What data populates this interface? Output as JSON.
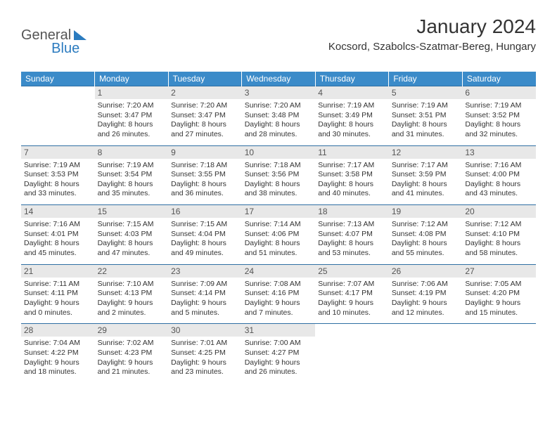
{
  "logo": {
    "part1": "General",
    "part2": "Blue"
  },
  "title": "January 2024",
  "location": "Kocsord, Szabolcs-Szatmar-Bereg, Hungary",
  "daynames": [
    "Sunday",
    "Monday",
    "Tuesday",
    "Wednesday",
    "Thursday",
    "Friday",
    "Saturday"
  ],
  "colors": {
    "header_bg": "#3b8bc9",
    "header_text": "#ffffff",
    "daynum_bg": "#e8e8e8",
    "border": "#2f6fa3",
    "logo_accent": "#2b7bbf"
  },
  "days": [
    {
      "n": "",
      "sr": "",
      "ss": "",
      "dl1": "",
      "dl2": ""
    },
    {
      "n": "1",
      "sr": "Sunrise: 7:20 AM",
      "ss": "Sunset: 3:47 PM",
      "dl1": "Daylight: 8 hours",
      "dl2": "and 26 minutes."
    },
    {
      "n": "2",
      "sr": "Sunrise: 7:20 AM",
      "ss": "Sunset: 3:47 PM",
      "dl1": "Daylight: 8 hours",
      "dl2": "and 27 minutes."
    },
    {
      "n": "3",
      "sr": "Sunrise: 7:20 AM",
      "ss": "Sunset: 3:48 PM",
      "dl1": "Daylight: 8 hours",
      "dl2": "and 28 minutes."
    },
    {
      "n": "4",
      "sr": "Sunrise: 7:19 AM",
      "ss": "Sunset: 3:49 PM",
      "dl1": "Daylight: 8 hours",
      "dl2": "and 30 minutes."
    },
    {
      "n": "5",
      "sr": "Sunrise: 7:19 AM",
      "ss": "Sunset: 3:51 PM",
      "dl1": "Daylight: 8 hours",
      "dl2": "and 31 minutes."
    },
    {
      "n": "6",
      "sr": "Sunrise: 7:19 AM",
      "ss": "Sunset: 3:52 PM",
      "dl1": "Daylight: 8 hours",
      "dl2": "and 32 minutes."
    },
    {
      "n": "7",
      "sr": "Sunrise: 7:19 AM",
      "ss": "Sunset: 3:53 PM",
      "dl1": "Daylight: 8 hours",
      "dl2": "and 33 minutes."
    },
    {
      "n": "8",
      "sr": "Sunrise: 7:19 AM",
      "ss": "Sunset: 3:54 PM",
      "dl1": "Daylight: 8 hours",
      "dl2": "and 35 minutes."
    },
    {
      "n": "9",
      "sr": "Sunrise: 7:18 AM",
      "ss": "Sunset: 3:55 PM",
      "dl1": "Daylight: 8 hours",
      "dl2": "and 36 minutes."
    },
    {
      "n": "10",
      "sr": "Sunrise: 7:18 AM",
      "ss": "Sunset: 3:56 PM",
      "dl1": "Daylight: 8 hours",
      "dl2": "and 38 minutes."
    },
    {
      "n": "11",
      "sr": "Sunrise: 7:17 AM",
      "ss": "Sunset: 3:58 PM",
      "dl1": "Daylight: 8 hours",
      "dl2": "and 40 minutes."
    },
    {
      "n": "12",
      "sr": "Sunrise: 7:17 AM",
      "ss": "Sunset: 3:59 PM",
      "dl1": "Daylight: 8 hours",
      "dl2": "and 41 minutes."
    },
    {
      "n": "13",
      "sr": "Sunrise: 7:16 AM",
      "ss": "Sunset: 4:00 PM",
      "dl1": "Daylight: 8 hours",
      "dl2": "and 43 minutes."
    },
    {
      "n": "14",
      "sr": "Sunrise: 7:16 AM",
      "ss": "Sunset: 4:01 PM",
      "dl1": "Daylight: 8 hours",
      "dl2": "and 45 minutes."
    },
    {
      "n": "15",
      "sr": "Sunrise: 7:15 AM",
      "ss": "Sunset: 4:03 PM",
      "dl1": "Daylight: 8 hours",
      "dl2": "and 47 minutes."
    },
    {
      "n": "16",
      "sr": "Sunrise: 7:15 AM",
      "ss": "Sunset: 4:04 PM",
      "dl1": "Daylight: 8 hours",
      "dl2": "and 49 minutes."
    },
    {
      "n": "17",
      "sr": "Sunrise: 7:14 AM",
      "ss": "Sunset: 4:06 PM",
      "dl1": "Daylight: 8 hours",
      "dl2": "and 51 minutes."
    },
    {
      "n": "18",
      "sr": "Sunrise: 7:13 AM",
      "ss": "Sunset: 4:07 PM",
      "dl1": "Daylight: 8 hours",
      "dl2": "and 53 minutes."
    },
    {
      "n": "19",
      "sr": "Sunrise: 7:12 AM",
      "ss": "Sunset: 4:08 PM",
      "dl1": "Daylight: 8 hours",
      "dl2": "and 55 minutes."
    },
    {
      "n": "20",
      "sr": "Sunrise: 7:12 AM",
      "ss": "Sunset: 4:10 PM",
      "dl1": "Daylight: 8 hours",
      "dl2": "and 58 minutes."
    },
    {
      "n": "21",
      "sr": "Sunrise: 7:11 AM",
      "ss": "Sunset: 4:11 PM",
      "dl1": "Daylight: 9 hours",
      "dl2": "and 0 minutes."
    },
    {
      "n": "22",
      "sr": "Sunrise: 7:10 AM",
      "ss": "Sunset: 4:13 PM",
      "dl1": "Daylight: 9 hours",
      "dl2": "and 2 minutes."
    },
    {
      "n": "23",
      "sr": "Sunrise: 7:09 AM",
      "ss": "Sunset: 4:14 PM",
      "dl1": "Daylight: 9 hours",
      "dl2": "and 5 minutes."
    },
    {
      "n": "24",
      "sr": "Sunrise: 7:08 AM",
      "ss": "Sunset: 4:16 PM",
      "dl1": "Daylight: 9 hours",
      "dl2": "and 7 minutes."
    },
    {
      "n": "25",
      "sr": "Sunrise: 7:07 AM",
      "ss": "Sunset: 4:17 PM",
      "dl1": "Daylight: 9 hours",
      "dl2": "and 10 minutes."
    },
    {
      "n": "26",
      "sr": "Sunrise: 7:06 AM",
      "ss": "Sunset: 4:19 PM",
      "dl1": "Daylight: 9 hours",
      "dl2": "and 12 minutes."
    },
    {
      "n": "27",
      "sr": "Sunrise: 7:05 AM",
      "ss": "Sunset: 4:20 PM",
      "dl1": "Daylight: 9 hours",
      "dl2": "and 15 minutes."
    },
    {
      "n": "28",
      "sr": "Sunrise: 7:04 AM",
      "ss": "Sunset: 4:22 PM",
      "dl1": "Daylight: 9 hours",
      "dl2": "and 18 minutes."
    },
    {
      "n": "29",
      "sr": "Sunrise: 7:02 AM",
      "ss": "Sunset: 4:23 PM",
      "dl1": "Daylight: 9 hours",
      "dl2": "and 21 minutes."
    },
    {
      "n": "30",
      "sr": "Sunrise: 7:01 AM",
      "ss": "Sunset: 4:25 PM",
      "dl1": "Daylight: 9 hours",
      "dl2": "and 23 minutes."
    },
    {
      "n": "31",
      "sr": "Sunrise: 7:00 AM",
      "ss": "Sunset: 4:27 PM",
      "dl1": "Daylight: 9 hours",
      "dl2": "and 26 minutes."
    },
    {
      "n": "",
      "sr": "",
      "ss": "",
      "dl1": "",
      "dl2": ""
    },
    {
      "n": "",
      "sr": "",
      "ss": "",
      "dl1": "",
      "dl2": ""
    },
    {
      "n": "",
      "sr": "",
      "ss": "",
      "dl1": "",
      "dl2": ""
    }
  ]
}
